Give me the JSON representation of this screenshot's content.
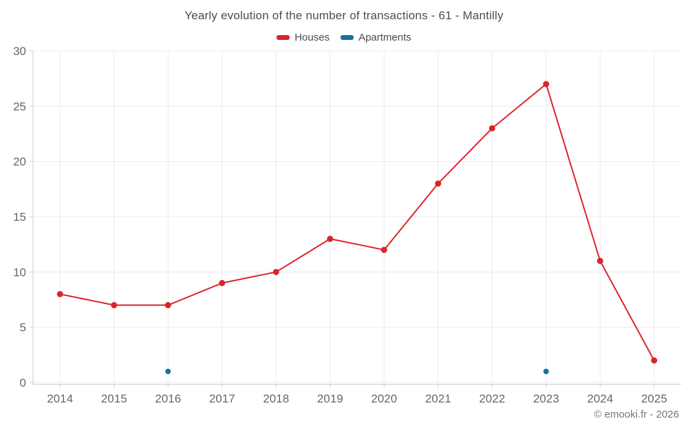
{
  "header": {
    "title": "Yearly evolution of the number of transactions - 61 - Mantilly"
  },
  "footer": {
    "credit": "© emooki.fr - 2026"
  },
  "colors": {
    "houses": "#dc2329",
    "apartments": "#17719e",
    "gridline": "#ececec",
    "axis": "#cccccc",
    "axis_text": "#666666"
  },
  "chart_data": {
    "type": "line",
    "title": "Yearly evolution of the number of transactions - 61 - Mantilly",
    "categories": [
      "2014",
      "2015",
      "2016",
      "2017",
      "2018",
      "2019",
      "2020",
      "2021",
      "2022",
      "2023",
      "2024",
      "2025"
    ],
    "series": [
      {
        "name": "Houses",
        "color": "#dc2329",
        "values": [
          8,
          7,
          7,
          9,
          10,
          13,
          12,
          18,
          23,
          27,
          11,
          2
        ]
      },
      {
        "name": "Apartments",
        "color": "#17719e",
        "values": [
          null,
          null,
          1,
          null,
          null,
          null,
          null,
          null,
          null,
          1,
          null,
          null
        ]
      }
    ],
    "xlabel": "",
    "ylabel": "",
    "ylim": [
      0,
      30
    ],
    "yticks": [
      0,
      5,
      10,
      15,
      20,
      25,
      30
    ],
    "grid": true,
    "legend_position": "top"
  }
}
